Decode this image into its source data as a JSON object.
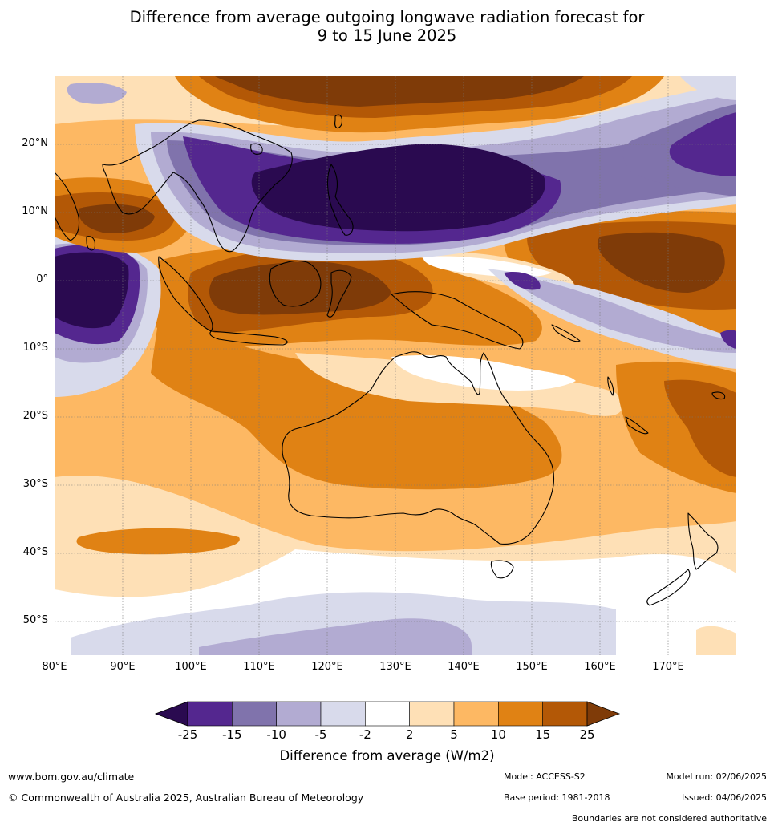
{
  "title_line1": "Difference from average outgoing longwave radiation forecast for",
  "title_line2": "9 to 15 June 2025",
  "map": {
    "lat_labels": [
      "20°N",
      "10°N",
      "0°",
      "10°S",
      "20°S",
      "30°S",
      "40°S",
      "50°S"
    ],
    "lon_labels": [
      "80°E",
      "90°E",
      "100°E",
      "110°E",
      "120°E",
      "130°E",
      "140°E",
      "150°E",
      "160°E",
      "170°E"
    ],
    "lat_values": [
      20,
      10,
      0,
      -10,
      -20,
      -30,
      -40,
      -50
    ],
    "lon_values": [
      80,
      90,
      100,
      110,
      120,
      130,
      140,
      150,
      160,
      170
    ],
    "extent": {
      "lon_min": 80,
      "lon_max": 180,
      "lat_min": -55,
      "lat_max": 30
    }
  },
  "colorbar": {
    "ticks": [
      "-25",
      "-15",
      "-10",
      "-5",
      "-2",
      "2",
      "5",
      "10",
      "15",
      "25"
    ],
    "colors": [
      "#2a0a50",
      "#54278f",
      "#8073ac",
      "#b2abd2",
      "#d8daeb",
      "#ffffff",
      "#fee0b6",
      "#fdb863",
      "#e08214",
      "#b35806",
      "#7f3b08"
    ],
    "label": "Difference from average (W/m2)"
  },
  "footer": {
    "website": "www.bom.gov.au/climate",
    "copyright": "© Commonwealth of Australia 2025, Australian Bureau of Meteorology",
    "model": "Model: ACCESS-S2",
    "base_period": "Base period: 1981-2018",
    "model_run": "Model run: 02/06/2025",
    "issued": "Issued: 04/06/2025",
    "disclaimer": "Boundaries are not considered authoritative"
  }
}
